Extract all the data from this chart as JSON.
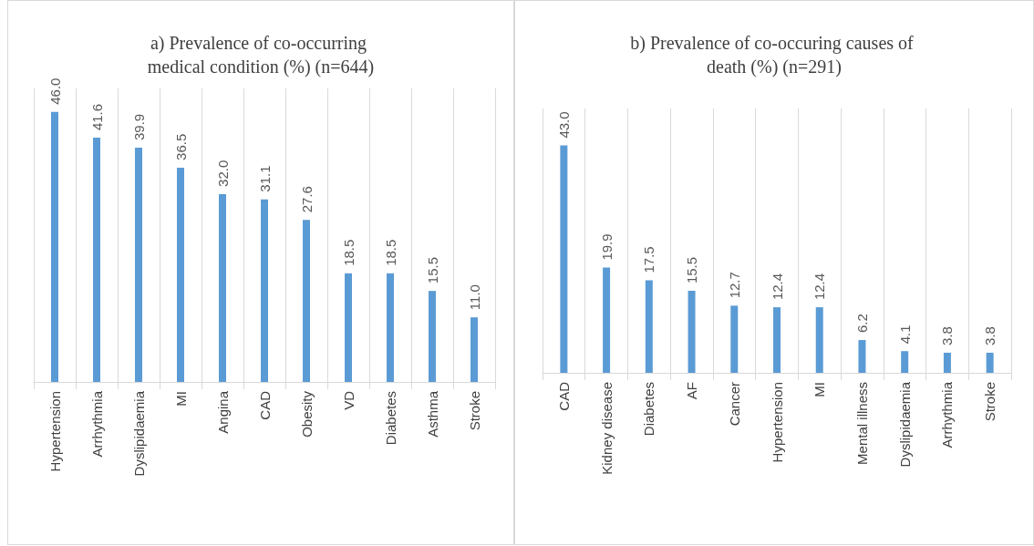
{
  "chart_data": [
    {
      "type": "bar",
      "title": "a) Prevalence of co-occurring medical condition (%) (n=644)",
      "categories": [
        "Hypertension",
        "Arrhythmia",
        "Dyslipidaemia",
        "MI",
        "Angina",
        "CAD",
        "Obesity",
        "VD",
        "Diabetes",
        "Asthma",
        "Stroke"
      ],
      "values": [
        46.0,
        41.6,
        39.9,
        36.5,
        32.0,
        31.1,
        27.6,
        18.5,
        18.5,
        15.5,
        11.0
      ],
      "value_labels": [
        "46.0",
        "41.6",
        "39.9",
        "36.5",
        "32.0",
        "31.1",
        "27.6",
        "18.5",
        "18.5",
        "15.5",
        "11.0"
      ],
      "color": "#5b9bd5",
      "grid": "x"
    },
    {
      "type": "bar",
      "title": "b) Prevalence of co-occuring causes of death (%) (n=291)",
      "categories": [
        "CAD",
        "Kidney disease",
        "Diabetes",
        "AF",
        "Cancer",
        "Hypertension",
        "MI",
        "Mental illness",
        "Dyslipidaemia",
        "Arrhythmia",
        "Stroke"
      ],
      "values": [
        43.0,
        19.9,
        17.5,
        15.5,
        12.7,
        12.4,
        12.4,
        6.2,
        4.1,
        3.8,
        3.8
      ],
      "value_labels": [
        "43.0",
        "19.9",
        "17.5",
        "15.5",
        "12.7",
        "12.4",
        "12.4",
        "6.2",
        "4.1",
        "3.8",
        "3.8"
      ],
      "color": "#5b9bd5",
      "grid": "x"
    }
  ]
}
